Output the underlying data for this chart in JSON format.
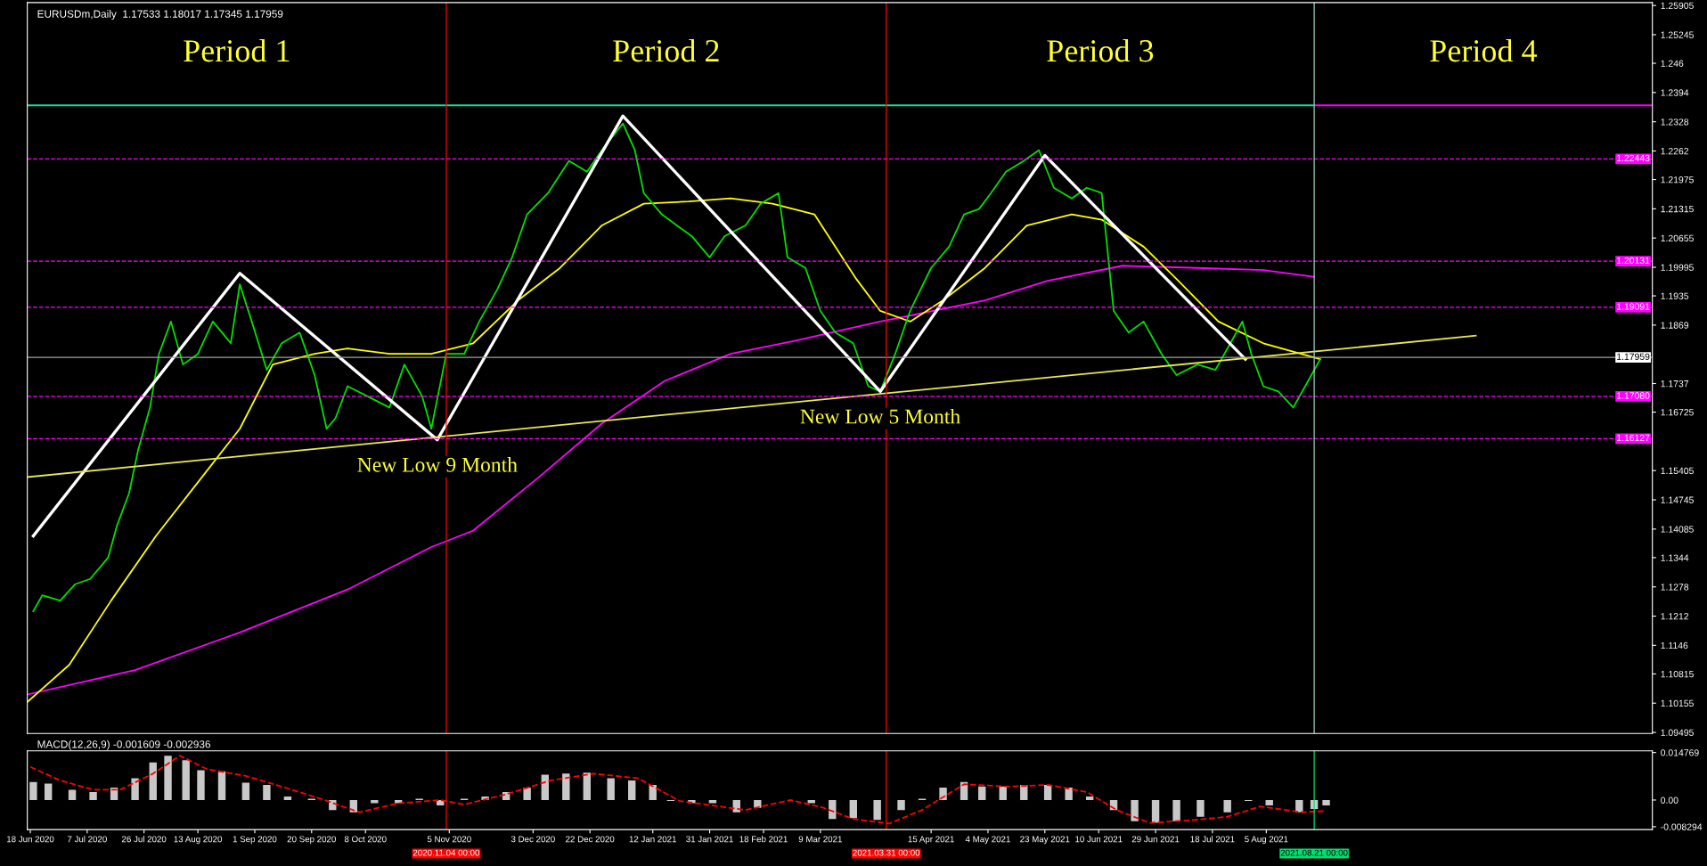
{
  "chart_data": [
    {
      "type": "line",
      "title": "EURUSDm,Daily  1.17533 1.18017 1.17345 1.17959",
      "tick_labels": "y",
      "xlim": [
        "2020-06-17",
        "2021-12-12"
      ],
      "ylim": [
        1.0947,
        1.2597
      ],
      "yticks": [
        1.25905,
        1.25245,
        1.246,
        1.2394,
        1.2328,
        1.2262,
        1.21975,
        1.21315,
        1.20655,
        1.19995,
        1.1935,
        1.1869,
        1.1737,
        1.16725,
        1.15405,
        1.14745,
        1.14085,
        1.1344,
        1.1278,
        1.1212,
        1.1146,
        1.10815,
        1.10155,
        1.09495
      ],
      "series": [
        {
          "color": "#ff00ff",
          "x": [
            "2020-06-17",
            "2020-07-23",
            "2020-08-27",
            "2020-10-02",
            "2020-10-30",
            "2020-11-13",
            "2020-12-05",
            "2020-12-26",
            "2021-01-16",
            "2021-02-07",
            "2021-02-28",
            "2021-03-29",
            "2021-05-03",
            "2021-05-24",
            "2021-06-18",
            "2021-07-13",
            "2021-08-04",
            "2021-08-21"
          ],
          "values": [
            1.1035,
            1.109,
            1.1175,
            1.1272,
            1.1368,
            1.1405,
            1.1526,
            1.1647,
            1.1743,
            1.1804,
            1.1833,
            1.1877,
            1.1925,
            1.1969,
            1.2003,
            1.1998,
            1.1993,
            1.1978
          ]
        },
        {
          "color": "#ffff00",
          "x": [
            "2020-06-17",
            "2020-07-01",
            "2020-07-15",
            "2020-07-30",
            "2020-08-13",
            "2020-08-27",
            "2020-09-07",
            "2020-09-21",
            "2020-10-02",
            "2020-10-16",
            "2020-10-30",
            "2020-11-13",
            "2020-11-28",
            "2020-12-12",
            "2020-12-26",
            "2021-01-09",
            "2021-01-24",
            "2021-02-07",
            "2021-02-21",
            "2021-03-07",
            "2021-03-21",
            "2021-03-29",
            "2021-04-08",
            "2021-04-19",
            "2021-05-03",
            "2021-05-17",
            "2021-06-01",
            "2021-06-11",
            "2021-06-25",
            "2021-07-06",
            "2021-07-20",
            "2021-08-04",
            "2021-08-23"
          ],
          "values": [
            1.1018,
            1.1102,
            1.1247,
            1.1393,
            1.1514,
            1.1635,
            1.178,
            1.1804,
            1.1816,
            1.1804,
            1.1804,
            1.1828,
            1.1925,
            1.1998,
            1.2094,
            1.2143,
            1.2148,
            1.2155,
            1.2143,
            1.2119,
            1.1973,
            1.1901,
            1.1877,
            1.1925,
            1.1998,
            1.2094,
            1.2119,
            1.2107,
            1.2046,
            1.1973,
            1.1877,
            1.1828,
            1.1792
          ]
        },
        {
          "color": "#00e000",
          "x": [
            "2020-06-19",
            "2020-06-22",
            "2020-06-28",
            "2020-07-03",
            "2020-07-08",
            "2020-07-14",
            "2020-07-17",
            "2020-07-21",
            "2020-07-24",
            "2020-07-28",
            "2020-07-31",
            "2020-08-04",
            "2020-08-08",
            "2020-08-13",
            "2020-08-18",
            "2020-08-24",
            "2020-08-27",
            "2020-08-31",
            "2020-09-05",
            "2020-09-10",
            "2020-09-16",
            "2020-09-21",
            "2020-09-25",
            "2020-09-28",
            "2020-10-02",
            "2020-10-09",
            "2020-10-16",
            "2020-10-21",
            "2020-10-27",
            "2020-10-30",
            "2020-11-04",
            "2020-11-10",
            "2020-11-15",
            "2020-11-21",
            "2020-11-26",
            "2020-12-01",
            "2020-12-08",
            "2020-12-15",
            "2020-12-21",
            "2020-12-26",
            "2021-01-02",
            "2021-01-06",
            "2021-01-09",
            "2021-01-15",
            "2021-01-20",
            "2021-01-25",
            "2021-01-31",
            "2021-02-05",
            "2021-02-12",
            "2021-02-17",
            "2021-02-23",
            "2021-02-26",
            "2021-03-04",
            "2021-03-09",
            "2021-03-14",
            "2021-03-20",
            "2021-03-25",
            "2021-03-29",
            "2021-04-03",
            "2021-04-08",
            "2021-04-15",
            "2021-04-21",
            "2021-04-26",
            "2021-05-01",
            "2021-05-05",
            "2021-05-10",
            "2021-05-16",
            "2021-05-21",
            "2021-05-26",
            "2021-06-01",
            "2021-06-06",
            "2021-06-11",
            "2021-06-15",
            "2021-06-20",
            "2021-06-25",
            "2021-07-01",
            "2021-07-06",
            "2021-07-13",
            "2021-07-19",
            "2021-07-24",
            "2021-07-28",
            "2021-07-31",
            "2021-08-04",
            "2021-08-09",
            "2021-08-14",
            "2021-08-18",
            "2021-08-23"
          ],
          "values": [
            1.1223,
            1.1259,
            1.1247,
            1.1284,
            1.1296,
            1.1344,
            1.1417,
            1.1489,
            1.1586,
            1.1683,
            1.1804,
            1.1877,
            1.178,
            1.1804,
            1.1877,
            1.1828,
            1.1961,
            1.1877,
            1.1768,
            1.1828,
            1.1852,
            1.1756,
            1.1635,
            1.1659,
            1.1731,
            1.1707,
            1.1683,
            1.178,
            1.1707,
            1.1635,
            1.1804,
            1.1804,
            1.1877,
            1.1949,
            1.2022,
            1.2119,
            1.2167,
            1.224,
            1.2215,
            1.2264,
            1.2324,
            1.2264,
            1.2167,
            1.2119,
            1.2094,
            1.207,
            1.2022,
            1.207,
            1.2094,
            1.2143,
            1.2167,
            1.2022,
            1.1998,
            1.1901,
            1.1852,
            1.1828,
            1.1731,
            1.1719,
            1.1804,
            1.1901,
            1.1998,
            1.2046,
            1.2119,
            1.2131,
            1.2167,
            1.2215,
            1.224,
            1.2264,
            1.2179,
            1.2155,
            1.2179,
            1.2167,
            1.1901,
            1.1852,
            1.1877,
            1.1804,
            1.1756,
            1.178,
            1.1768,
            1.1828,
            1.1877,
            1.1804,
            1.1731,
            1.1719,
            1.1683,
            1.1731,
            1.1792
          ]
        },
        {
          "color": "#ffffff",
          "x": [
            "2020-06-19",
            "2020-08-27",
            "2020-11-01",
            "2021-01-02",
            "2021-03-29",
            "2021-05-23",
            "2021-07-29"
          ],
          "values": [
            1.1393,
            1.1986,
            1.161,
            1.2341,
            1.1719,
            1.2252,
            1.1792
          ]
        },
        {
          "color": "#e8e850",
          "x": [
            "2020-06-17",
            "2021-10-14"
          ],
          "values": [
            1.1526,
            1.1845
          ]
        },
        {
          "color": "#26d9a0",
          "x": [
            "2020-06-17",
            "2021-08-21"
          ],
          "values": [
            1.2365,
            1.2365
          ]
        },
        {
          "color": "#ff00ff",
          "x": [
            "2021-08-21",
            "2021-12-12"
          ],
          "values": [
            1.2365,
            1.2365
          ]
        }
      ],
      "ref_lines": [
        {
          "axis": "y",
          "value": 1.22443,
          "label": "1.22443",
          "color": "#ff00ff",
          "line_style": "dashed"
        },
        {
          "axis": "y",
          "value": 1.20131,
          "label": "1.20131",
          "color": "#ff00ff",
          "line_style": "dashed"
        },
        {
          "axis": "y",
          "value": 1.19091,
          "label": "1.19091",
          "color": "#ff00ff",
          "line_style": "dashed"
        },
        {
          "axis": "y",
          "value": 1.1708,
          "label": "1.17080",
          "color": "#ff00ff",
          "line_style": "dashed"
        },
        {
          "axis": "y",
          "value": 1.16127,
          "label": "1.16127",
          "color": "#ff00ff",
          "line_style": "dashed"
        },
        {
          "axis": "y",
          "value": 1.17959,
          "label": "1.17959",
          "color": "#a0a0a0",
          "line_style": "solid"
        },
        {
          "axis": "x",
          "value": "2020-11-04",
          "color": "#ff0000",
          "line_style": "solid"
        },
        {
          "axis": "x",
          "value": "2021-03-31",
          "color": "#ff0000",
          "line_style": "solid"
        },
        {
          "axis": "x",
          "value": "2021-08-21",
          "color": "#a0d0c0",
          "line_style": "solid"
        }
      ],
      "annotations": [
        "Period 1",
        "Period 2",
        "Period 3",
        "Period 4",
        {
          "text": "New Low 9 Month",
          "x": "2020-11-01",
          "y": 1.161
        },
        {
          "text": "New Low 5 Month",
          "x": "2021-03-29",
          "y": 1.1719
        }
      ]
    },
    {
      "type": "bar",
      "title": "MACD(12,26,9) -0.001609 -0.002936",
      "xlim": [
        "2020-06-17",
        "2021-12-12"
      ],
      "ylim": [
        -0.0092,
        0.0153
      ],
      "yticks": [
        0.014769,
        {
          "value": 0,
          "label": "0.00"
        },
        -0.008294
      ],
      "xticks": [
        {
          "value": "2020-06-18",
          "label": "18 Jun 2020"
        },
        {
          "value": "2020-07-07",
          "label": "7 Jul 2020"
        },
        {
          "value": "2020-07-26",
          "label": "26 Jul 2020"
        },
        {
          "value": "2020-08-13",
          "label": "13 Aug 2020"
        },
        {
          "value": "2020-09-01",
          "label": "1 Sep 2020"
        },
        {
          "value": "2020-09-20",
          "label": "20 Sep 2020"
        },
        {
          "value": "2020-10-08",
          "label": "8 Oct 2020"
        },
        {
          "value": "2020-11-05",
          "label": "5 Nov 2020"
        },
        {
          "value": "2020-12-03",
          "label": "3 Dec 2020"
        },
        {
          "value": "2020-12-22",
          "label": "22 Dec 2020"
        },
        {
          "value": "2021-01-12",
          "label": "12 Jan 2021"
        },
        {
          "value": "2021-01-31",
          "label": "31 Jan 2021"
        },
        {
          "value": "2021-02-18",
          "label": "18 Feb 2021"
        },
        {
          "value": "2021-03-09",
          "label": "9 Mar 2021"
        },
        {
          "value": "2021-04-15",
          "label": "15 Apr 2021"
        },
        {
          "value": "2021-05-04",
          "label": "4 May 2021"
        },
        {
          "value": "2021-05-23",
          "label": "23 May 2021"
        },
        {
          "value": "2021-06-10",
          "label": "10 Jun 2021"
        },
        {
          "value": "2021-06-29",
          "label": "29 Jun 2021"
        },
        {
          "value": "2021-07-18",
          "label": "18 Jul 2021"
        },
        {
          "value": "2021-08-05",
          "label": "5 Aug 2021"
        }
      ],
      "series": [
        {
          "color": "#c8c8c8",
          "x": [
            "2020-06-19",
            "2020-06-24",
            "2020-07-02",
            "2020-07-09",
            "2020-07-16",
            "2020-07-23",
            "2020-07-29",
            "2020-08-03",
            "2020-08-09",
            "2020-08-14",
            "2020-08-21",
            "2020-08-29",
            "2020-09-05",
            "2020-09-12",
            "2020-09-20",
            "2020-09-27",
            "2020-10-04",
            "2020-10-11",
            "2020-10-19",
            "2020-10-26",
            "2020-11-02",
            "2020-11-10",
            "2020-11-17",
            "2020-11-24",
            "2020-12-01",
            "2020-12-07",
            "2020-12-14",
            "2020-12-21",
            "2020-12-29",
            "2021-01-05",
            "2021-01-12",
            "2021-01-18",
            "2021-01-25",
            "2021-02-01",
            "2021-02-09",
            "2021-02-16",
            "2021-02-27",
            "2021-03-06",
            "2021-03-13",
            "2021-03-20",
            "2021-03-28",
            "2021-04-05",
            "2021-04-12",
            "2021-04-19",
            "2021-04-26",
            "2021-05-02",
            "2021-05-09",
            "2021-05-16",
            "2021-05-24",
            "2021-05-31",
            "2021-06-07",
            "2021-06-15",
            "2021-06-22",
            "2021-06-29",
            "2021-07-06",
            "2021-07-14",
            "2021-07-23",
            "2021-07-30",
            "2021-08-06",
            "2021-08-16",
            "2021-08-21",
            "2021-08-25"
          ],
          "values": [
            0.0056,
            0.0051,
            0.0032,
            0.0025,
            0.0039,
            0.0068,
            0.0117,
            0.0138,
            0.0124,
            0.0093,
            0.0089,
            0.0054,
            0.0047,
            0.0011,
            0.0004,
            -0.0031,
            -0.0038,
            -0.001,
            -0.001,
            0.0004,
            -0.0017,
            0.0004,
            0.0011,
            0.0025,
            0.0039,
            0.0079,
            0.0082,
            0.0085,
            0.0068,
            0.0061,
            0.0047,
            -0.0003,
            -0.001,
            -0.001,
            -0.0038,
            -0.0024,
            0.0,
            -0.001,
            -0.0059,
            -0.0056,
            -0.0062,
            -0.0031,
            0.0004,
            0.0039,
            0.0056,
            0.0042,
            0.0042,
            0.0047,
            0.0047,
            0.0039,
            0.0011,
            -0.0031,
            -0.0066,
            -0.0071,
            -0.0066,
            -0.0052,
            -0.0038,
            -0.0003,
            -0.0017,
            -0.0038,
            -0.0028,
            -0.0017
          ]
        },
        {
          "type": "line",
          "color": "#ff0000",
          "line_style": "dashed",
          "x": [
            "2020-06-18",
            "2020-06-28",
            "2020-07-09",
            "2020-07-18",
            "2020-07-29",
            "2020-08-07",
            "2020-08-16",
            "2020-08-29",
            "2020-09-11",
            "2020-09-23",
            "2020-10-06",
            "2020-10-19",
            "2020-11-02",
            "2020-11-10",
            "2020-11-24",
            "2020-12-09",
            "2020-12-23",
            "2021-01-07",
            "2021-01-21",
            "2021-02-01",
            "2021-02-12",
            "2021-02-27",
            "2021-03-10",
            "2021-03-20",
            "2021-04-01",
            "2021-04-12",
            "2021-04-26",
            "2021-05-11",
            "2021-05-24",
            "2021-06-06",
            "2021-06-16",
            "2021-06-27",
            "2021-07-12",
            "2021-07-23",
            "2021-08-03",
            "2021-08-17",
            "2021-08-25"
          ],
          "values": [
            0.0103,
            0.0061,
            0.0032,
            0.0032,
            0.0082,
            0.0138,
            0.0096,
            0.0075,
            0.0039,
            0.0004,
            -0.0038,
            -0.001,
            0.0,
            -0.0014,
            0.0018,
            0.0061,
            0.0082,
            0.0068,
            -0.0003,
            -0.0017,
            -0.0031,
            0.0,
            -0.0024,
            -0.0059,
            -0.0073,
            -0.0031,
            0.0049,
            0.0042,
            0.0047,
            0.0025,
            -0.0031,
            -0.0071,
            -0.0062,
            -0.0052,
            -0.002,
            -0.0038,
            -0.0034
          ]
        }
      ],
      "ref_lines": [
        {
          "axis": "x",
          "value": "2020-11-04",
          "label": "2020.11.04 00:00",
          "color": "#ff0000"
        },
        {
          "axis": "x",
          "value": "2021-03-31",
          "label": "2021.03.31 00:00",
          "color": "#ff0000"
        },
        {
          "axis": "x",
          "value": "2021-08-21",
          "label": "2021.08.21 00:00",
          "color": "#00e070"
        }
      ]
    }
  ]
}
